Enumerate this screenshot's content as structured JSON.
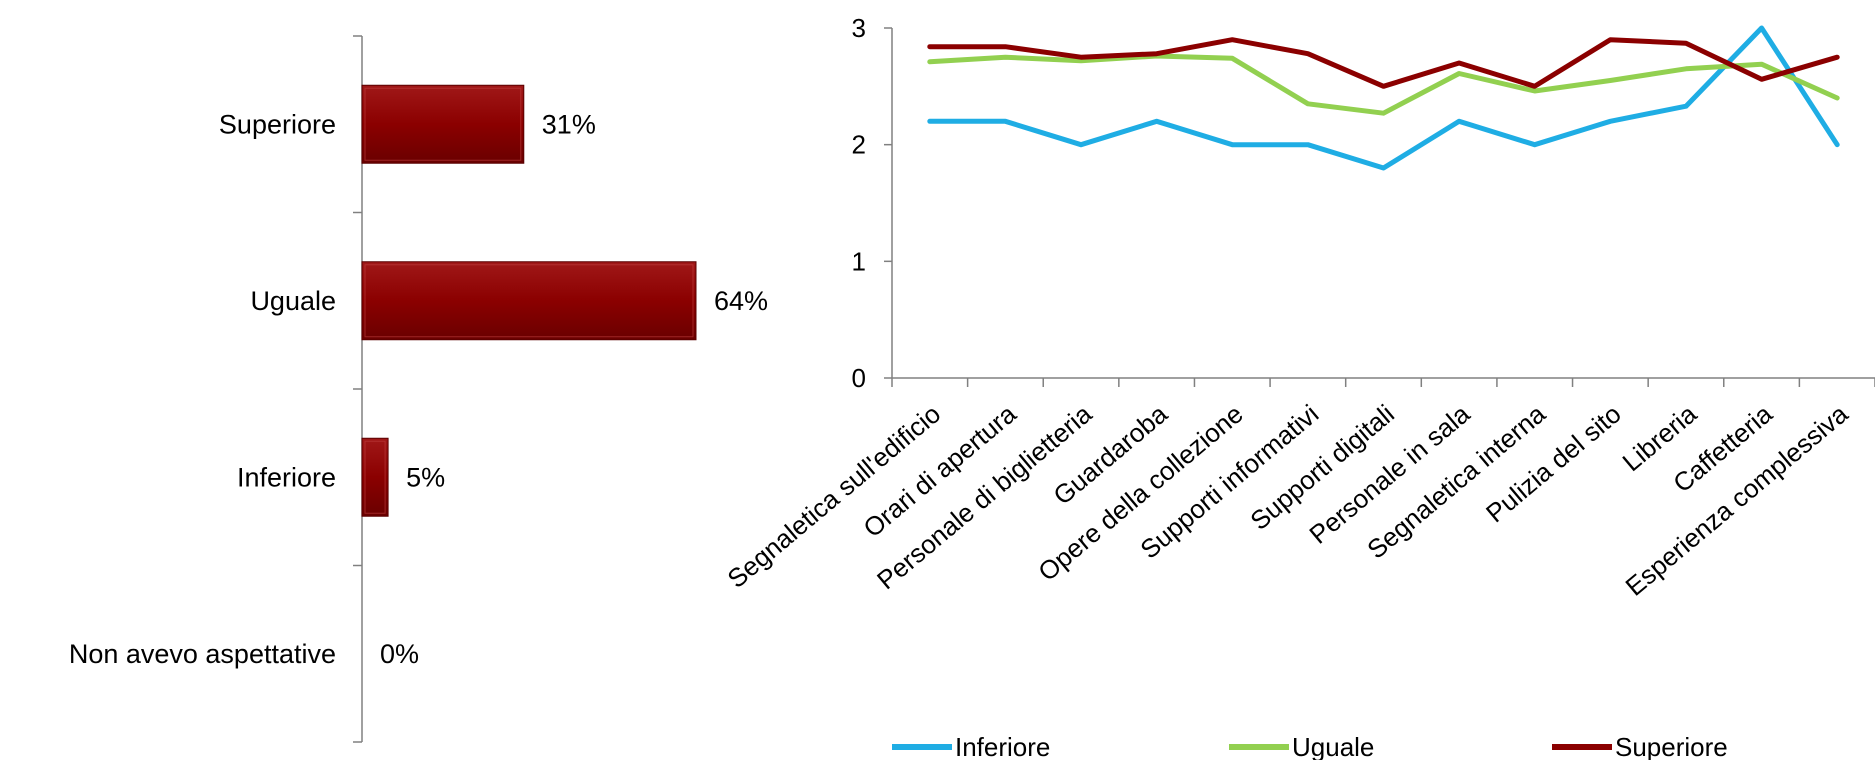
{
  "chart_data": [
    {
      "type": "bar",
      "orientation": "horizontal",
      "categories": [
        "Superiore",
        "Uguale",
        "Inferiore",
        "Non avevo aspettative"
      ],
      "values": [
        31,
        64,
        5,
        0
      ],
      "value_labels": [
        "31%",
        "64%",
        "5%",
        "0%"
      ],
      "unit": "%",
      "bar_color": "#8B0000",
      "xlim": [
        0,
        100
      ],
      "grid": false
    },
    {
      "type": "line",
      "categories": [
        "Segnaletica sull'edificio",
        "Orari di apertura",
        "Personale di biglietteria",
        "Guardaroba",
        "Opere della collezione",
        "Supporti informativi",
        "Supporti digitali",
        "Personale in sala",
        "Segnaletica interna",
        "Pulizia del sito",
        "Libreria",
        "Caffetteria",
        "Esperienza complessiva"
      ],
      "series": [
        {
          "name": "Inferiore",
          "color": "#1FADE4",
          "values": [
            2.2,
            2.2,
            2.0,
            2.2,
            2.0,
            2.0,
            1.8,
            2.2,
            2.0,
            2.2,
            2.33,
            3.0,
            2.0
          ]
        },
        {
          "name": "Uguale",
          "color": "#92D050",
          "values": [
            2.71,
            2.75,
            2.72,
            2.76,
            2.74,
            2.35,
            2.27,
            2.61,
            2.46,
            2.55,
            2.65,
            2.69,
            2.4
          ]
        },
        {
          "name": "Superiore",
          "color": "#8B0000",
          "values": [
            2.84,
            2.84,
            2.75,
            2.78,
            2.9,
            2.78,
            2.5,
            2.7,
            2.5,
            2.9,
            2.87,
            2.56,
            2.75
          ]
        }
      ],
      "y_ticks": [
        "0",
        "1",
        "2",
        "3"
      ],
      "ylim": [
        0,
        3
      ],
      "legend_position": "bottom",
      "grid": false
    }
  ]
}
